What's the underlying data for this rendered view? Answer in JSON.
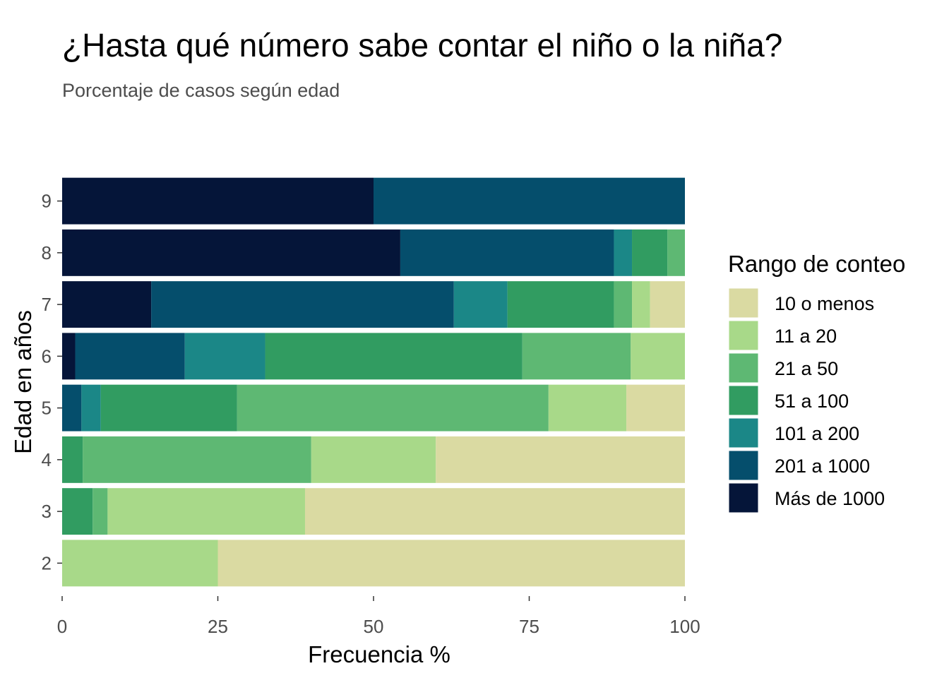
{
  "chart_data": {
    "type": "bar",
    "orientation": "horizontal",
    "stacked": true,
    "title": "¿Hasta qué número sabe contar el niño o la niña?",
    "subtitle": "Porcentaje de casos según edad",
    "xlabel": "Frecuencia %",
    "ylabel": "Edad en años",
    "xlim": [
      0,
      100
    ],
    "xticks": [
      "0",
      "25",
      "50",
      "75",
      "100"
    ],
    "xtick_values": [
      0,
      25,
      50,
      75,
      100
    ],
    "categories": [
      "2",
      "3",
      "4",
      "5",
      "6",
      "7",
      "8",
      "9"
    ],
    "grid": false,
    "legend": {
      "title": "Rango de conteo",
      "position": "right"
    },
    "series": [
      {
        "name": "Más de 1000",
        "color": "#051539",
        "values": [
          0,
          0,
          0,
          0,
          2.1,
          14.3,
          54.3,
          50
        ]
      },
      {
        "name": "201 a 1000",
        "color": "#054E6C",
        "values": [
          0,
          0,
          0,
          3.1,
          17.6,
          48.6,
          34.3,
          50
        ]
      },
      {
        "name": "101 a 200",
        "color": "#1B8787",
        "values": [
          0,
          0,
          0,
          3.1,
          12.9,
          8.6,
          2.9,
          0
        ]
      },
      {
        "name": "51 a 100",
        "color": "#319C61",
        "values": [
          0,
          4.9,
          3.3,
          21.9,
          41.3,
          17.1,
          5.7,
          0
        ]
      },
      {
        "name": "21 a 50",
        "color": "#5EB873",
        "values": [
          0,
          2.4,
          36.7,
          50,
          17.4,
          2.9,
          2.8,
          0
        ]
      },
      {
        "name": "11 a 20",
        "color": "#A8D989",
        "values": [
          25,
          31.7,
          20,
          12.5,
          8.7,
          2.9,
          0,
          0
        ]
      },
      {
        "name": "10 o menos",
        "color": "#DADAA2",
        "values": [
          75,
          61,
          40,
          9.4,
          0,
          5.6,
          0,
          0
        ]
      }
    ],
    "legend_order": [
      "10 o menos",
      "11 a 20",
      "21 a 50",
      "51 a 100",
      "101 a 200",
      "201 a 1000",
      "Más de 1000"
    ]
  }
}
